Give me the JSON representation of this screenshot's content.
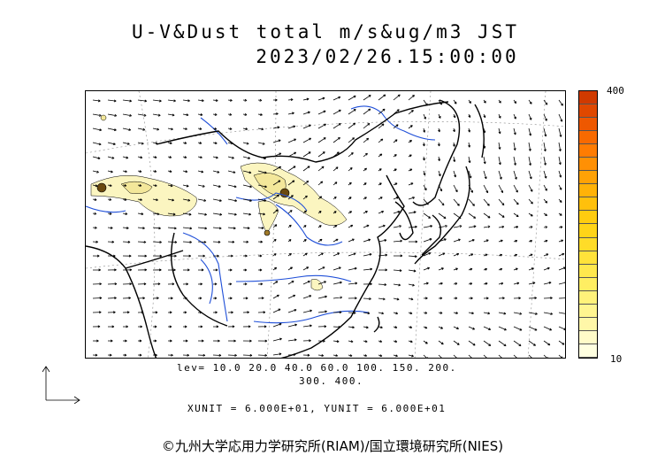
{
  "title_line1": "U-V&Dust total m/s&ug/m3 JST",
  "title_line2": "2023/02/26.15:00:00",
  "colorbar": {
    "max_label": "400",
    "min_label": "10",
    "colors": [
      "#ffffe0",
      "#fffbc8",
      "#fff7a8",
      "#fff590",
      "#fff27a",
      "#ffee62",
      "#ffe84e",
      "#ffe23a",
      "#ffdc28",
      "#ffd418",
      "#ffcc10",
      "#ffc00c",
      "#ffb208",
      "#ffa206",
      "#ff9004",
      "#ff7c02",
      "#f86a00",
      "#ee5800",
      "#e04800",
      "#d03a00"
    ]
  },
  "contour_levels_line1": "lev= 10.0 20.0 40.0 60.0 100. 150. 200.",
  "contour_levels_line2": "300. 400.",
  "units_text": "XUNIT = 6.000E+01, YUNIT = 6.000E+01",
  "copyright": "©九州大学応用力学研究所(RIAM)/国立環境研究所(NIES)",
  "map_colors": {
    "coast": "#000000",
    "rivers": "#1f4fd8",
    "dust_light": "#fbf5c0",
    "dust_mid": "#f3e79a",
    "dust_dark": "#6b4a10"
  }
}
